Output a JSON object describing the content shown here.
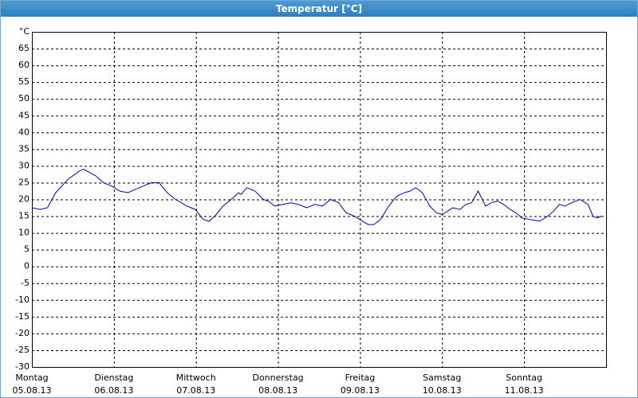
{
  "window_title": "Temperatur [°C]",
  "chart_data": {
    "type": "line",
    "x": [
      0,
      0.1,
      0.19,
      0.29,
      0.44,
      0.58,
      0.63,
      0.78,
      0.87,
      0.97,
      1.07,
      1.17,
      1.26,
      1.36,
      1.46,
      1.55,
      1.65,
      1.75,
      1.89,
      1.99,
      2.09,
      2.16,
      2.23,
      2.33,
      2.43,
      2.52,
      2.55,
      2.62,
      2.72,
      2.82,
      2.88,
      2.96,
      3.06,
      3.16,
      3.25,
      3.35,
      3.45,
      3.54,
      3.64,
      3.74,
      3.83,
      3.93,
      4.03,
      4.1,
      4.17,
      4.25,
      4.35,
      4.45,
      4.54,
      4.61,
      4.68,
      4.76,
      4.85,
      4.93,
      5,
      5.07,
      5.13,
      5.22,
      5.29,
      5.36,
      5.44,
      5.49,
      5.53,
      5.6,
      5.68,
      5.75,
      5.83,
      5.9,
      5.97,
      6.07,
      6.19,
      6.29,
      6.36,
      6.43,
      6.5,
      6.58,
      6.68,
      6.78,
      6.84,
      6.89,
      6.95
    ],
    "series": [
      {
        "color": "#0000cc",
        "values": [
          17.5,
          17,
          17.5,
          22,
          26,
          28.5,
          29,
          27,
          25,
          24,
          22.5,
          22,
          23,
          24,
          25,
          25,
          22,
          20,
          18,
          17,
          14,
          13.5,
          15,
          18,
          20,
          22,
          21.5,
          23.5,
          22.5,
          20,
          19.5,
          18,
          18.5,
          19,
          18.5,
          17.5,
          18.5,
          18,
          20,
          19,
          16,
          15,
          13.5,
          12.5,
          12.5,
          14,
          18,
          21,
          22,
          22.5,
          23.5,
          22,
          18,
          16,
          15.5,
          16.5,
          17.5,
          17,
          18.5,
          19,
          22.5,
          20,
          18,
          19,
          19.5,
          18.5,
          17,
          16,
          14.5,
          14,
          13.5,
          15,
          16.5,
          18.5,
          18,
          19,
          20,
          18.5,
          15,
          14.5,
          15
        ]
      }
    ],
    "xlim": [
      0,
      7
    ],
    "xticks": [
      {
        "value": 0,
        "label": "Montag",
        "date": "05.08.13"
      },
      {
        "value": 1,
        "label": "Dienstag",
        "date": "06.08.13"
      },
      {
        "value": 2,
        "label": "Mittwoch",
        "date": "07.08.13"
      },
      {
        "value": 3,
        "label": "Donnerstag",
        "date": "08.08.13"
      },
      {
        "value": 4,
        "label": "Freitag",
        "date": "09.08.13"
      },
      {
        "value": 5,
        "label": "Samstag",
        "date": "10.08.13"
      },
      {
        "value": 6,
        "label": "Sonntag",
        "date": "11.08.13"
      }
    ],
    "ylim": [
      -30,
      70
    ],
    "yticks": [
      -30,
      -25,
      -20,
      -15,
      -10,
      -5,
      0,
      5,
      10,
      15,
      20,
      25,
      30,
      35,
      40,
      45,
      50,
      55,
      60,
      65,
      {
        "value": 70,
        "label": "°C"
      }
    ],
    "grid": true
  }
}
